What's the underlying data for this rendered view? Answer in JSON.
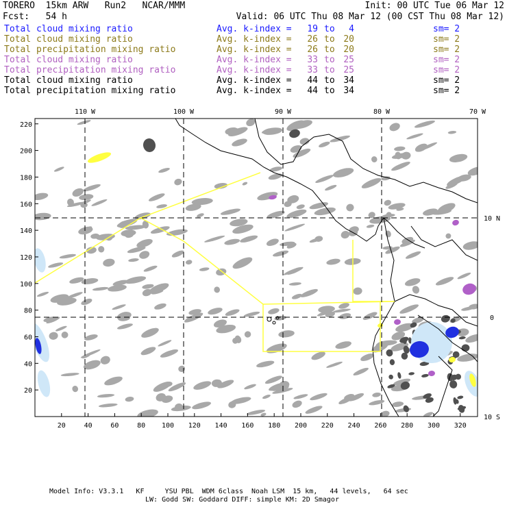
{
  "header": {
    "model": "TORERO",
    "resolution": "15km ARW",
    "run": "Run2",
    "org": "NCAR/MMM",
    "init": "Init: 00 UTC Tue 06 Mar 12",
    "fcst_label": "Fcst:",
    "fcst_value": "54 h",
    "valid": "Valid: 06 UTC Thu 08 Mar 12 (00 CST Thu 08 Mar 12)"
  },
  "fields": [
    {
      "name": "Total cloud mixing ratio",
      "stat": "Avg. k-index =",
      "k1": "19",
      "to": "to",
      "k2": "4",
      "sm": "sm= 2",
      "color": "#1a1aff"
    },
    {
      "name": "Total cloud mixing ratio",
      "stat": "Avg. k-index =",
      "k1": "26",
      "to": "to",
      "k2": "20",
      "sm": "sm= 2",
      "color": "#8c7a1a"
    },
    {
      "name": "Total precipitation mixing ratio",
      "stat": "Avg. k-index =",
      "k1": "26",
      "to": "to",
      "k2": "20",
      "sm": "sm= 2",
      "color": "#8c7a1a"
    },
    {
      "name": "Total cloud mixing ratio",
      "stat": "Avg. k-index =",
      "k1": "33",
      "to": "to",
      "k2": "25",
      "sm": "sm= 2",
      "color": "#b060c0"
    },
    {
      "name": "Total precipitation mixing ratio",
      "stat": "Avg. k-index =",
      "k1": "33",
      "to": "to",
      "k2": "25",
      "sm": "sm= 2",
      "color": "#b060c0"
    },
    {
      "name": "Total cloud mixing ratio",
      "stat": "Avg. k-index =",
      "k1": "44",
      "to": "to",
      "k2": "34",
      "sm": "sm= 2",
      "color": "#000000"
    },
    {
      "name": "Total precipitation mixing ratio",
      "stat": "Avg. k-index =",
      "k1": "44",
      "to": "to",
      "k2": "34",
      "sm": "sm= 2",
      "color": "#000000"
    }
  ],
  "axes": {
    "top_lon": [
      "110 W",
      "100 W",
      "90 W",
      "80 W",
      "70 W"
    ],
    "right_lat": [
      "10 N",
      "0",
      "10 S"
    ],
    "left_ticks": [
      "220",
      "200",
      "180",
      "160",
      "140",
      "120",
      "100",
      "80",
      "60",
      "40",
      "20"
    ],
    "bottom_ticks": [
      "20",
      "40",
      "60",
      "80",
      "100",
      "120",
      "140",
      "160",
      "180",
      "200",
      "220",
      "240",
      "260",
      "280",
      "300",
      "320"
    ]
  },
  "colors": {
    "cloud_gray": "#a8a8a8",
    "dark_gray": "#505050",
    "light_blue": "#cfe7f8",
    "blue": "#2030e0",
    "yellow": "#ffff40",
    "purple": "#b060c8",
    "boundary": "#000000",
    "torero_box": "#ffff40"
  },
  "footer": {
    "line1": "Model Info: V3.3.1   KF     YSU PBL  WDM 6class  Noah LSM  15 km,   44 levels,   64 sec",
    "line2": "LW: Godd SW: Goddard DIFF: simple KM: 2D Smagor"
  }
}
